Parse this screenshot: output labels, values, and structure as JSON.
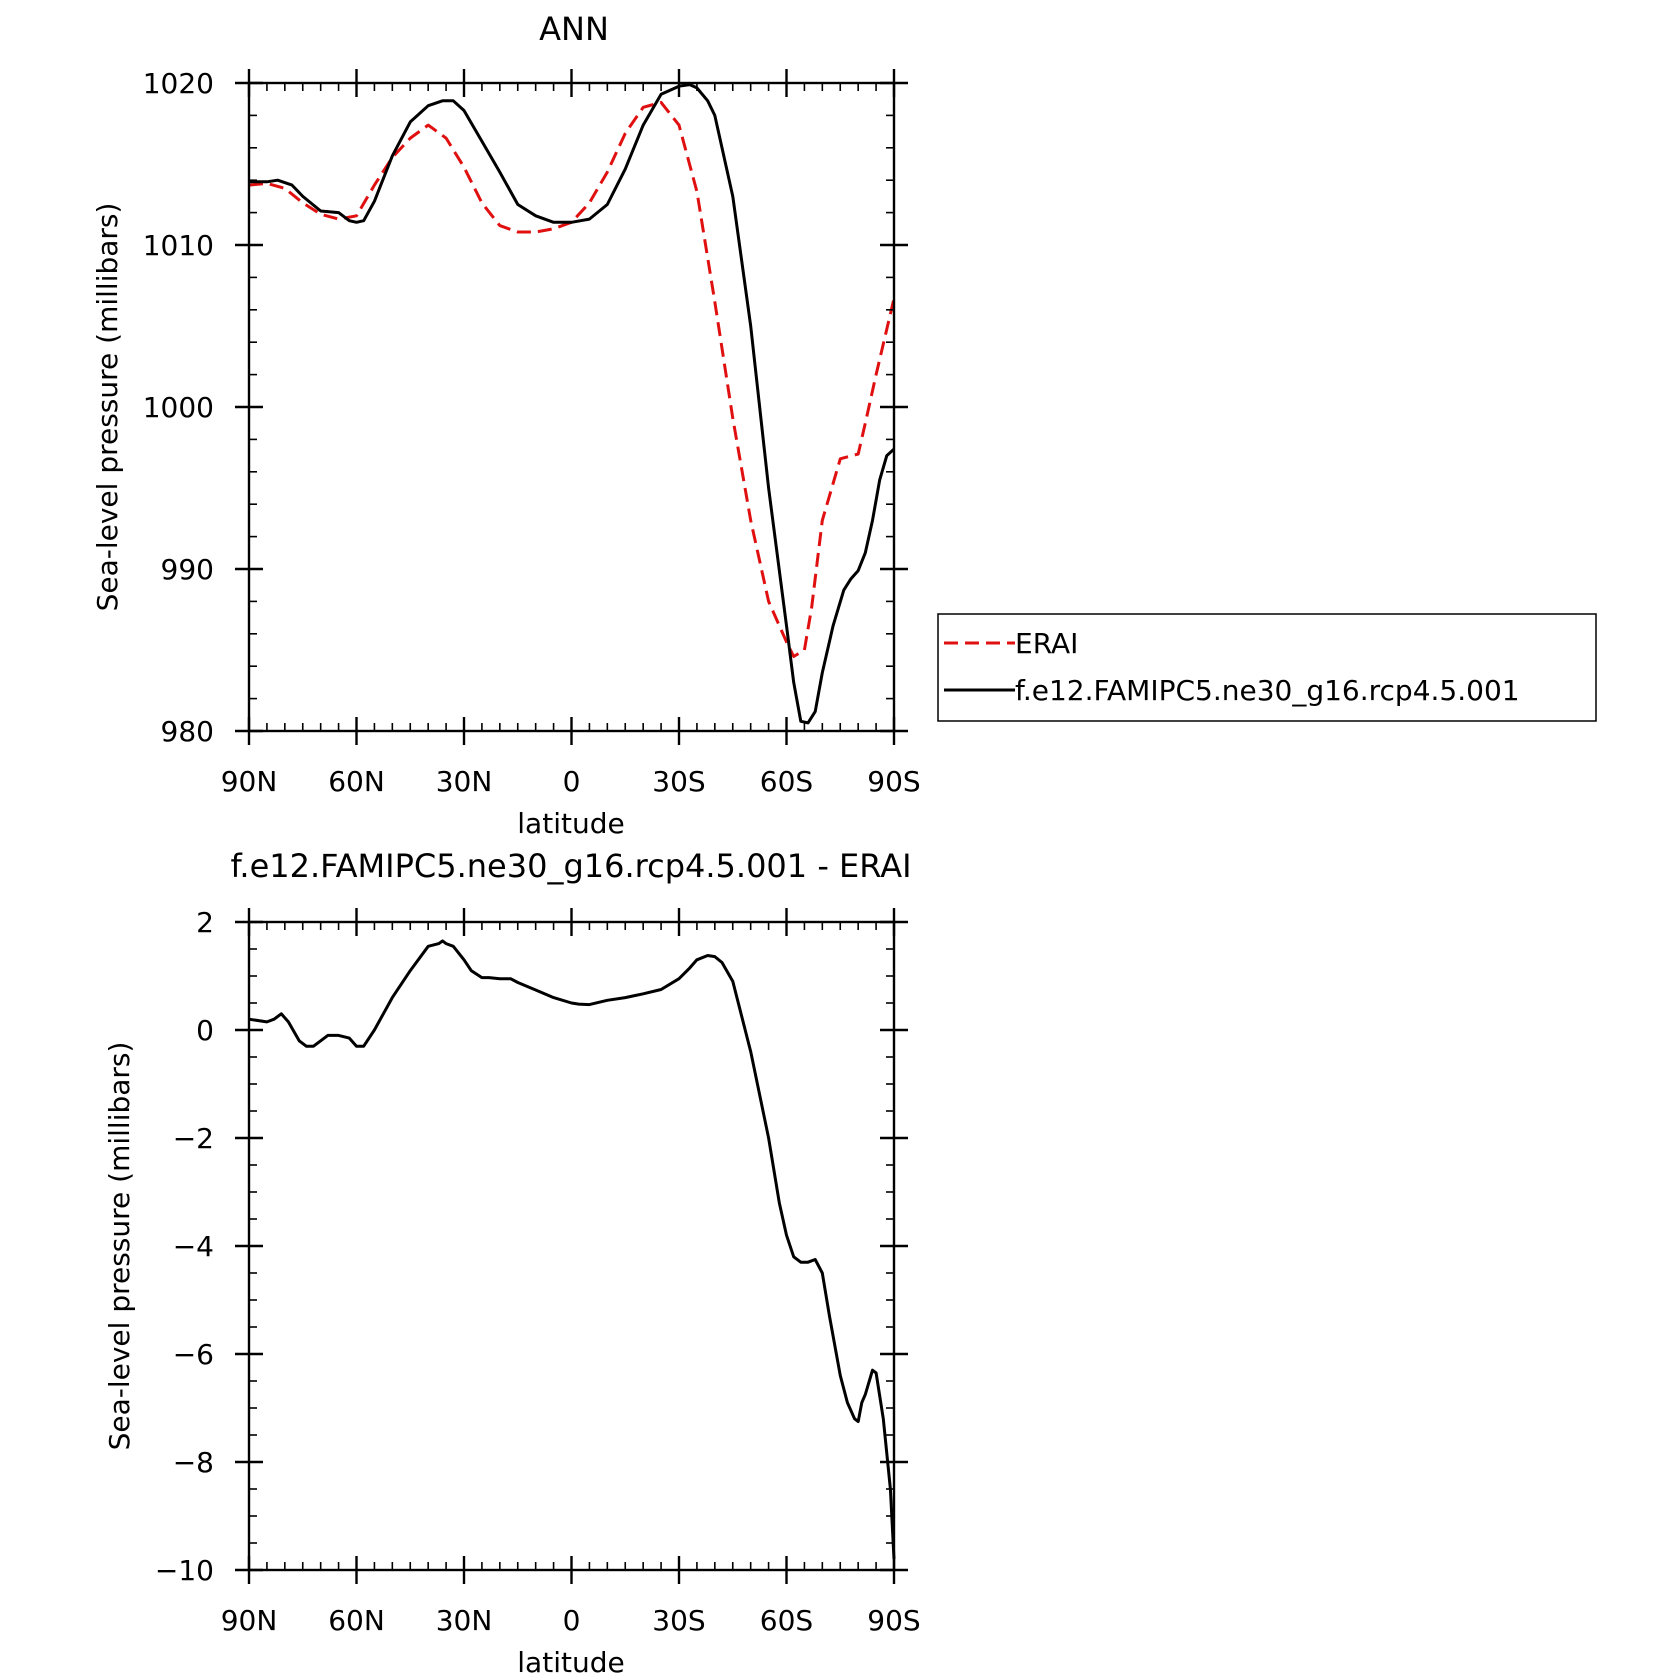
{
  "colors": {
    "erai": "#e01010",
    "model": "#000000"
  },
  "legend": {
    "placement": "right of top panel",
    "entries": [
      {
        "label": "ERAI",
        "style": "dashed",
        "color": "#e01010"
      },
      {
        "label": "f.e12.FAMIPC5.ne30_g16.rcp4.5.001",
        "style": "solid",
        "color": "#000000"
      }
    ]
  },
  "chart_data": [
    {
      "type": "line",
      "title": "ANN",
      "xlabel": "latitude",
      "ylabel": "Sea-level pressure (millibars)",
      "xlim": [
        90,
        -90
      ],
      "ylim": [
        980,
        1020
      ],
      "xticks": [
        90,
        60,
        30,
        0,
        -30,
        -60,
        -90
      ],
      "xtick_labels": [
        "90N",
        "60N",
        "30N",
        "0",
        "30S",
        "60S",
        "90S"
      ],
      "yticks": [
        980,
        990,
        1000,
        1010,
        1020
      ],
      "ytick_labels": [
        "980",
        "990",
        "1000",
        "1010",
        "1020"
      ],
      "grid": false,
      "series": [
        {
          "name": "ERAI",
          "style": "dashed",
          "color": "#e01010",
          "x": [
            90,
            85,
            80,
            75,
            70,
            65,
            60,
            55,
            50,
            45,
            40,
            35,
            30,
            25,
            20,
            15,
            10,
            5,
            0,
            -5,
            -10,
            -15,
            -20,
            -25,
            -30,
            -35,
            -40,
            -45,
            -50,
            -55,
            -60,
            -62,
            -65,
            -67,
            -70,
            -75,
            -80,
            -82,
            -85,
            -90
          ],
          "y": [
            1013.7,
            1013.8,
            1013.5,
            1012.6,
            1011.9,
            1011.6,
            1011.8,
            1013.7,
            1015.4,
            1016.6,
            1017.4,
            1016.6,
            1014.8,
            1012.6,
            1011.2,
            1010.8,
            1010.8,
            1011.0,
            1011.4,
            1012.6,
            1014.5,
            1016.9,
            1018.5,
            1018.8,
            1017.4,
            1013.3,
            1006.5,
            999.3,
            993.0,
            988.0,
            985.5,
            984.6,
            985.0,
            987.6,
            993.0,
            996.8,
            997.1,
            999.0,
            1002.0,
            1006.7
          ]
        },
        {
          "name": "f.e12.FAMIPC5.ne30_g16.rcp4.5.001",
          "style": "solid",
          "color": "#000000",
          "x": [
            90,
            85,
            82,
            78,
            75,
            70,
            65,
            62,
            60,
            58,
            55,
            50,
            45,
            40,
            36,
            33,
            30,
            25,
            20,
            15,
            10,
            5,
            0,
            -5,
            -10,
            -15,
            -20,
            -25,
            -30,
            -33,
            -35,
            -38,
            -40,
            -45,
            -50,
            -55,
            -60,
            -62,
            -64,
            -66,
            -68,
            -70,
            -73,
            -76,
            -78,
            -80,
            -82,
            -84,
            -86,
            -88,
            -90
          ],
          "y": [
            1013.9,
            1013.9,
            1014.0,
            1013.7,
            1013.0,
            1012.1,
            1012.0,
            1011.5,
            1011.4,
            1011.5,
            1012.7,
            1015.5,
            1017.6,
            1018.6,
            1018.9,
            1018.9,
            1018.3,
            1016.4,
            1014.5,
            1012.5,
            1011.8,
            1011.4,
            1011.4,
            1011.6,
            1012.5,
            1014.7,
            1017.4,
            1019.3,
            1019.8,
            1019.9,
            1019.7,
            1018.9,
            1018.0,
            1013.0,
            1005.0,
            995.0,
            986.5,
            983.0,
            980.6,
            980.5,
            981.2,
            983.6,
            986.5,
            988.7,
            989.4,
            989.9,
            991.0,
            993.0,
            995.5,
            997.0,
            997.4
          ]
        }
      ]
    },
    {
      "type": "line",
      "title": "f.e12.FAMIPC5.ne30_g16.rcp4.5.001 - ERAI",
      "xlabel": "latitude",
      "ylabel": "Sea-level pressure (millibars)",
      "xlim": [
        90,
        -90
      ],
      "ylim": [
        -10,
        2
      ],
      "xticks": [
        90,
        60,
        30,
        0,
        -30,
        -60,
        -90
      ],
      "xtick_labels": [
        "90N",
        "60N",
        "30N",
        "0",
        "30S",
        "60S",
        "90S"
      ],
      "yticks": [
        -10,
        -8,
        -6,
        -4,
        -2,
        0,
        2
      ],
      "ytick_labels": [
        "−10",
        "−8",
        "−6",
        "−4",
        "−2",
        "0",
        "2"
      ],
      "grid": false,
      "series": [
        {
          "style": "solid",
          "color": "#000000",
          "x": [
            90,
            85,
            83,
            81,
            79,
            76,
            74,
            72,
            70,
            68,
            65,
            62,
            60,
            58,
            55,
            50,
            45,
            40,
            37,
            36,
            35,
            33,
            30,
            28,
            25,
            23,
            20,
            17,
            15,
            10,
            5,
            0,
            -2,
            -5,
            -10,
            -15,
            -20,
            -25,
            -30,
            -33,
            -35,
            -38,
            -40,
            -42,
            -45,
            -50,
            -55,
            -58,
            -60,
            -62,
            -64,
            -66,
            -68,
            -70,
            -72,
            -75,
            -77,
            -79,
            -80,
            -81,
            -82,
            -84,
            -85,
            -87,
            -89,
            -90
          ],
          "y": [
            0.2,
            0.15,
            0.2,
            0.3,
            0.15,
            -0.2,
            -0.3,
            -0.3,
            -0.2,
            -0.1,
            -0.1,
            -0.15,
            -0.3,
            -0.3,
            0.0,
            0.6,
            1.1,
            1.55,
            1.6,
            1.65,
            1.6,
            1.55,
            1.3,
            1.1,
            0.97,
            0.97,
            0.95,
            0.95,
            0.88,
            0.74,
            0.6,
            0.5,
            0.48,
            0.47,
            0.55,
            0.6,
            0.67,
            0.75,
            0.95,
            1.15,
            1.3,
            1.38,
            1.36,
            1.25,
            0.9,
            -0.4,
            -2.0,
            -3.2,
            -3.8,
            -4.2,
            -4.3,
            -4.3,
            -4.25,
            -4.5,
            -5.3,
            -6.4,
            -6.9,
            -7.2,
            -7.25,
            -6.9,
            -6.75,
            -6.3,
            -6.35,
            -7.2,
            -8.5,
            -9.8
          ]
        }
      ]
    }
  ]
}
